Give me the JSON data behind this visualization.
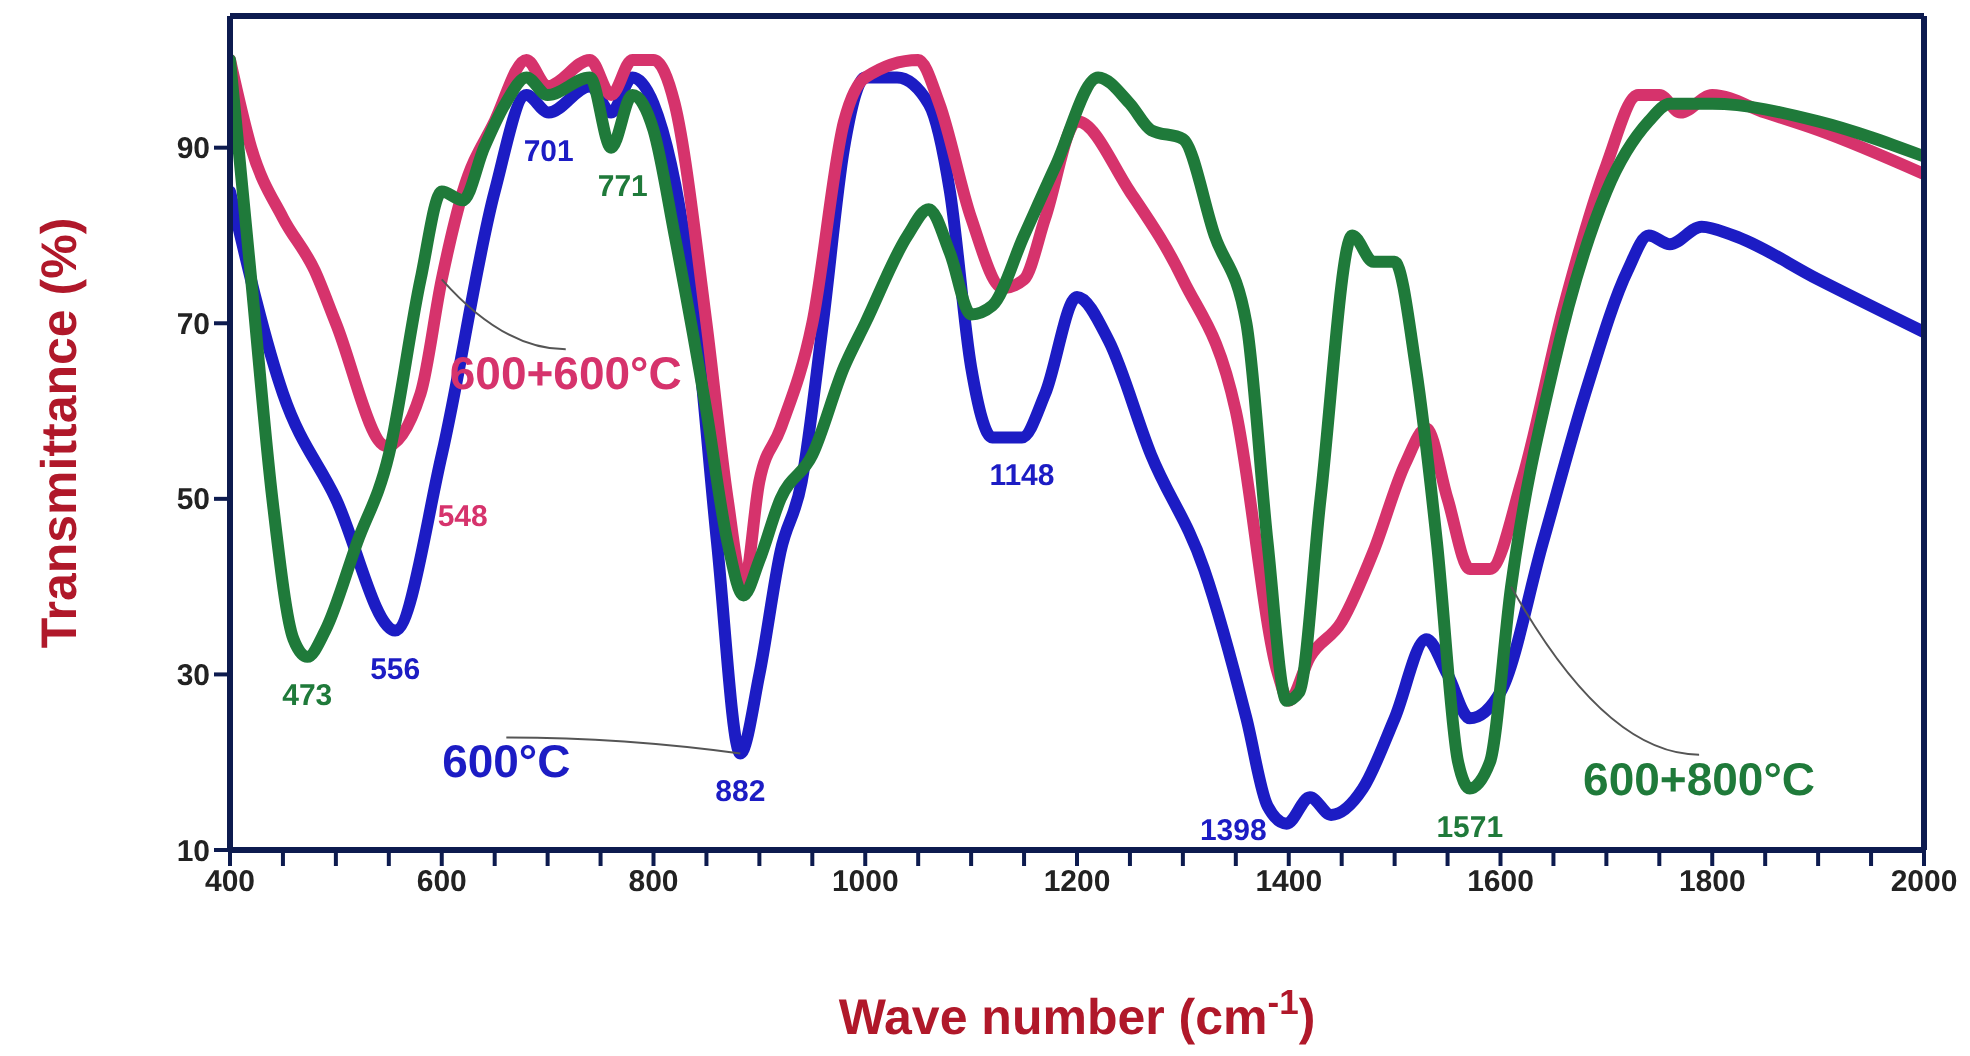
{
  "chart_data": {
    "type": "line",
    "xlabel": "Wave number (cm$^{-1}$)",
    "ylabel": "Transmittance (%)",
    "xlim": [
      400,
      2000
    ],
    "xticks": [
      400,
      {
        "value": 450,
        "label": null
      },
      {
        "value": 500,
        "label": null
      },
      {
        "value": 550,
        "label": null
      },
      600,
      {
        "value": 650,
        "label": null
      },
      {
        "value": 700,
        "label": null
      },
      {
        "value": 750,
        "label": null
      },
      800,
      {
        "value": 850,
        "label": null
      },
      {
        "value": 900,
        "label": null
      },
      {
        "value": 950,
        "label": null
      },
      1000,
      {
        "value": 1050,
        "label": null
      },
      {
        "value": 1100,
        "label": null
      },
      {
        "value": 1150,
        "label": null
      },
      1200,
      {
        "value": 1250,
        "label": null
      },
      {
        "value": 1300,
        "label": null
      },
      {
        "value": 1350,
        "label": null
      },
      1400,
      {
        "value": 1450,
        "label": null
      },
      {
        "value": 1500,
        "label": null
      },
      {
        "value": 1550,
        "label": null
      },
      1600,
      {
        "value": 1650,
        "label": null
      },
      {
        "value": 1700,
        "label": null
      },
      {
        "value": 1750,
        "label": null
      },
      1800,
      {
        "value": 1850,
        "label": null
      },
      {
        "value": 1900,
        "label": null
      },
      {
        "value": 1950,
        "label": null
      },
      2000
    ],
    "ylim": [
      10,
      105
    ],
    "yticks": [
      10,
      30,
      50,
      70,
      90
    ],
    "series": [
      {
        "name": "600°C",
        "color": "#1c1cc4",
        "x": [
          400,
          450,
          500,
          556,
          600,
          650,
          680,
          701,
          740,
          760,
          780,
          800,
          840,
          860,
          882,
          900,
          920,
          940,
          960,
          980,
          1000,
          1030,
          1060,
          1080,
          1100,
          1120,
          1148,
          1170,
          1200,
          1230,
          1270,
          1320,
          1360,
          1380,
          1398,
          1420,
          1440,
          1470,
          1500,
          1530,
          1550,
          1571,
          1600,
          1640,
          1680,
          1720,
          1740,
          1760,
          1790,
          1820,
          1900,
          2000
        ],
        "values": [
          85,
          62,
          50,
          35,
          55,
          85,
          96,
          94,
          97,
          94,
          98,
          95,
          70,
          45,
          21,
          30,
          44,
          52,
          70,
          90,
          98,
          98,
          95,
          85,
          65,
          57,
          57,
          62,
          73,
          68,
          55,
          42,
          25,
          15,
          13,
          16,
          14,
          17,
          25,
          34,
          30,
          25,
          28,
          45,
          62,
          76,
          80,
          79,
          81,
          80,
          75,
          69
        ]
      },
      {
        "name": "600+600°C",
        "color": "#d6336c",
        "x": [
          400,
          420,
          450,
          480,
          500,
          548,
          580,
          600,
          620,
          650,
          680,
          700,
          740,
          760,
          780,
          800,
          820,
          850,
          870,
          885,
          900,
          920,
          950,
          980,
          1000,
          1050,
          1070,
          1100,
          1130,
          1150,
          1170,
          1200,
          1250,
          1300,
          1350,
          1390,
          1400,
          1420,
          1450,
          1480,
          1510,
          1530,
          1550,
          1571,
          1590,
          1620,
          1660,
          1700,
          1730,
          1750,
          1770,
          1800,
          1850,
          1900,
          2000
        ],
        "values": [
          100,
          90,
          82,
          76,
          70,
          56,
          62,
          75,
          85,
          93,
          100,
          97,
          100,
          96,
          100,
          100,
          95,
          70,
          50,
          40,
          52,
          58,
          70,
          93,
          98,
          100,
          95,
          82,
          74,
          75,
          82,
          93,
          85,
          75,
          60,
          30,
          27,
          32,
          36,
          44,
          54,
          58,
          50,
          42,
          42,
          52,
          72,
          88,
          96,
          96,
          94,
          96,
          94,
          92,
          87
        ]
      },
      {
        "name": "600+800°C",
        "color": "#1f7a3a",
        "x": [
          400,
          420,
          440,
          460,
          473,
          490,
          520,
          550,
          580,
          600,
          620,
          640,
          660,
          680,
          700,
          740,
          760,
          780,
          800,
          820,
          850,
          870,
          885,
          900,
          920,
          950,
          980,
          1000,
          1040,
          1060,
          1080,
          1100,
          1120,
          1150,
          1180,
          1220,
          1250,
          1270,
          1300,
          1330,
          1360,
          1380,
          1398,
          1410,
          1430,
          1460,
          1480,
          1500,
          1520,
          1540,
          1560,
          1571,
          1590,
          1610,
          1650,
          1700,
          1740,
          1760,
          1800,
          1900,
          2000
        ],
        "values": [
          100,
          75,
          50,
          34,
          32,
          35,
          45,
          55,
          75,
          85,
          84,
          90,
          95,
          98,
          96,
          98,
          90,
          96,
          92,
          80,
          60,
          45,
          39,
          43,
          50,
          55,
          65,
          70,
          80,
          83,
          78,
          71,
          72,
          80,
          88,
          98,
          95,
          92,
          91,
          80,
          70,
          45,
          27,
          28,
          50,
          80,
          77,
          77,
          65,
          45,
          20,
          17,
          20,
          40,
          65,
          85,
          93,
          95,
          95,
          93,
          89
        ]
      }
    ],
    "annotations": [
      {
        "text": "473",
        "x": 473,
        "y": 32
      },
      {
        "text": "556",
        "x": 556,
        "y": 35
      },
      {
        "text": "548",
        "x": 548,
        "y": 56
      },
      {
        "text": "701",
        "x": 701,
        "y": 94
      },
      {
        "text": "771",
        "x": 771,
        "y": 90
      },
      {
        "text": "882",
        "x": 882,
        "y": 21
      },
      {
        "text": "1148",
        "x": 1148,
        "y": 57
      },
      {
        "text": "1398",
        "x": 1398,
        "y": 13
      },
      {
        "text": "1571",
        "x": 1571,
        "y": 17
      }
    ]
  }
}
